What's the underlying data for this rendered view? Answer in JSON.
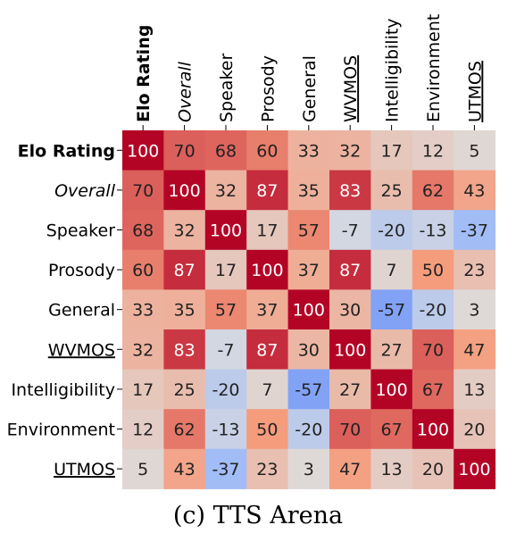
{
  "chart_data": {
    "type": "heatmap",
    "labels": [
      "Elo Rating",
      "Overall",
      "Speaker",
      "Prosody",
      "General",
      "WVMOS",
      "Intelligibility",
      "Environment",
      "UTMOS"
    ],
    "label_styles": [
      "bold",
      "italic",
      "normal",
      "normal",
      "normal",
      "underline",
      "normal",
      "normal",
      "underline"
    ],
    "values": [
      [
        100,
        70,
        68,
        60,
        33,
        32,
        17,
        12,
        5
      ],
      [
        70,
        100,
        32,
        87,
        35,
        83,
        25,
        62,
        43
      ],
      [
        68,
        32,
        100,
        17,
        57,
        -7,
        -20,
        -13,
        -37
      ],
      [
        60,
        87,
        17,
        100,
        37,
        87,
        7,
        50,
        23
      ],
      [
        33,
        35,
        57,
        37,
        100,
        30,
        -57,
        -20,
        3
      ],
      [
        32,
        83,
        -7,
        87,
        30,
        100,
        27,
        70,
        47
      ],
      [
        17,
        25,
        -20,
        7,
        -57,
        27,
        100,
        67,
        13
      ],
      [
        12,
        62,
        -13,
        50,
        -20,
        70,
        67,
        100,
        20
      ],
      [
        5,
        43,
        -37,
        23,
        3,
        47,
        13,
        20,
        100
      ]
    ],
    "color_scale": "coolwarm",
    "vmin": -100,
    "vmax": 100,
    "caption": "(c) TTS Arena"
  }
}
